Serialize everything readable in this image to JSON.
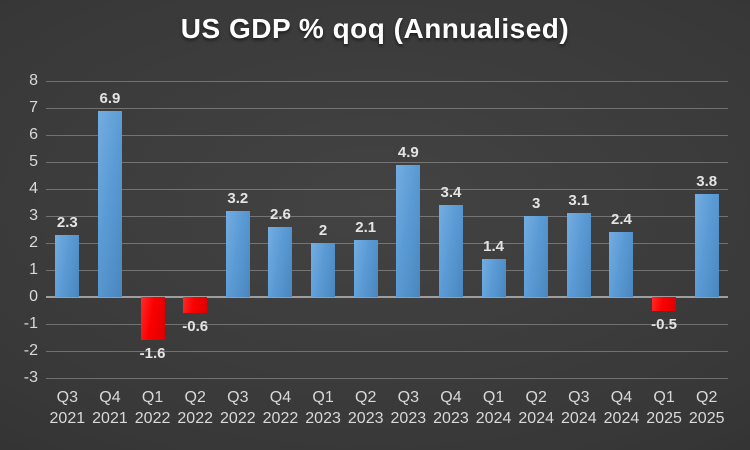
{
  "page": {
    "background_center_color": "#434343",
    "background_edge_color": "#262626"
  },
  "chart_data": {
    "type": "bar",
    "title": "US GDP % qoq (Annualised)",
    "categories": [
      "Q3 2021",
      "Q4 2021",
      "Q1 2022",
      "Q2 2022",
      "Q3 2022",
      "Q4 2022",
      "Q1 2023",
      "Q2 2023",
      "Q3 2023",
      "Q4 2023",
      "Q1 2024",
      "Q2 2024",
      "Q3 2024",
      "Q4 2024",
      "Q1 2025",
      "Q2 2025"
    ],
    "values": [
      2.3,
      6.9,
      -1.6,
      -0.6,
      3.2,
      2.6,
      2,
      2.1,
      4.9,
      3.4,
      1.4,
      3,
      3.1,
      2.4,
      -0.5,
      3.8
    ],
    "value_labels": [
      "2.3",
      "6.9",
      "-1.6",
      "-0.6",
      "3.2",
      "2.6",
      "2",
      "2.1",
      "4.9",
      "3.4",
      "1.4",
      "3",
      "3.1",
      "2.4",
      "-0.5",
      "3.8"
    ],
    "xlabel": "",
    "ylabel": "",
    "ylim": [
      -3,
      8
    ],
    "ytick_step": 1,
    "ytick_labels": [
      "8",
      "7",
      "6",
      "5",
      "4",
      "3",
      "2",
      "1",
      "0",
      "-1",
      "-2",
      "-3"
    ],
    "grid": true,
    "legend": "none",
    "colors": {
      "bar_positive": "#5B9BD5",
      "bar_negative": "#FF0000",
      "title_text": "#FFFFFF",
      "tick_label_text": "#D9D9D9",
      "value_label_text": "#E4E4E4",
      "gridline": "rgba(255,255,255,0.28)",
      "zero_line": "#9E9E9E"
    }
  }
}
